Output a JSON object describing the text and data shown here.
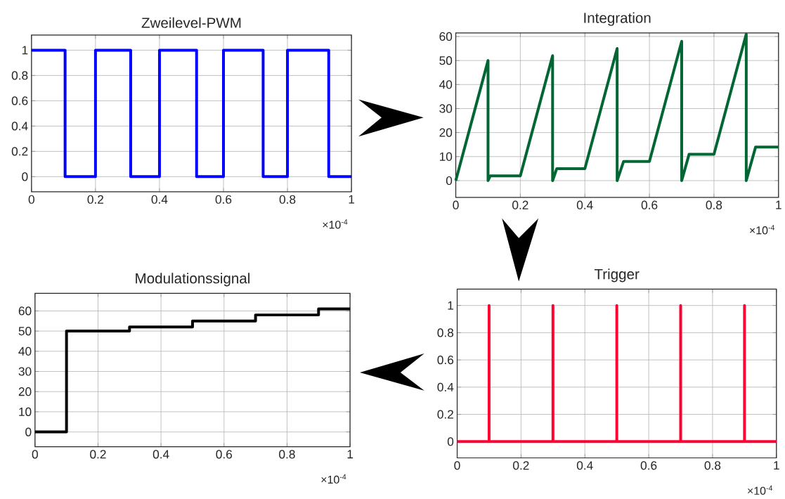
{
  "chart_data": [
    {
      "type": "step",
      "title": "Zweilevel-PWM",
      "x": [
        0,
        0.105,
        0.2,
        0.31,
        0.4,
        0.516,
        0.6,
        0.724,
        0.8,
        0.929,
        1
      ],
      "values": [
        1,
        0,
        1,
        0,
        1,
        0,
        1,
        0,
        1,
        0,
        0
      ],
      "color": "#0000ff",
      "xlim": [
        0,
        1
      ],
      "ylim": [
        -0.12,
        1.12
      ],
      "xticks": [
        0,
        0.2,
        0.4,
        0.6,
        0.8,
        1
      ],
      "yticks": [
        0,
        0.2,
        0.4,
        0.6,
        0.8,
        1
      ],
      "grid": true,
      "annotations": [
        "×10$^{-4}$"
      ]
    },
    {
      "type": "line",
      "title": "Integration",
      "x": [
        0,
        0.1,
        0.1,
        0.107,
        0.2,
        0.3,
        0.3,
        0.313,
        0.4,
        0.5,
        0.5,
        0.52,
        0.6,
        0.7,
        0.7,
        0.723,
        0.8,
        0.9,
        0.9,
        0.929,
        1
      ],
      "values": [
        0,
        50,
        0,
        2,
        2,
        52,
        0,
        5,
        5,
        55,
        0,
        8,
        8,
        58,
        0,
        11,
        11,
        61,
        0,
        14,
        14
      ],
      "color": "#006633",
      "xlim": [
        0,
        1
      ],
      "ylim": [
        -7,
        61.5
      ],
      "xticks": [
        0,
        0.2,
        0.4,
        0.6,
        0.8,
        1
      ],
      "yticks": [
        0,
        10,
        20,
        30,
        40,
        50,
        60
      ],
      "grid": true,
      "annotations": [
        "×10$^{-4}$"
      ]
    },
    {
      "type": "step",
      "title": "Modulationssignal",
      "x": [
        0,
        0.1,
        0.3,
        0.5,
        0.7,
        0.9,
        1
      ],
      "values": [
        0,
        50,
        52,
        55,
        58,
        61,
        61
      ],
      "color": "#000000",
      "xlim": [
        0,
        1
      ],
      "ylim": [
        -7.3,
        68.7
      ],
      "xticks": [
        0,
        0.2,
        0.4,
        0.6,
        0.8,
        1
      ],
      "yticks": [
        0,
        10,
        20,
        30,
        40,
        50,
        60
      ],
      "grid": true,
      "annotations": [
        "×10$^{-4}$"
      ]
    },
    {
      "type": "line",
      "title": "Trigger",
      "x": [
        0,
        0.1,
        0.1,
        0.1,
        0.3,
        0.3,
        0.3,
        0.5,
        0.5,
        0.5,
        0.7,
        0.7,
        0.7,
        0.9,
        0.9,
        0.9,
        1
      ],
      "values": [
        0,
        0,
        1,
        0,
        0,
        1,
        0,
        0,
        1,
        0,
        0,
        1,
        0,
        0,
        1,
        0,
        0
      ],
      "color": "#ff0033",
      "xlim": [
        0,
        1
      ],
      "ylim": [
        -0.12,
        1.12
      ],
      "xticks": [
        0,
        0.2,
        0.4,
        0.6,
        0.8,
        1
      ],
      "yticks": [
        0,
        0.2,
        0.4,
        0.6,
        0.8,
        1
      ],
      "grid": true,
      "annotations": [
        "×10$^{-4}$"
      ]
    }
  ]
}
